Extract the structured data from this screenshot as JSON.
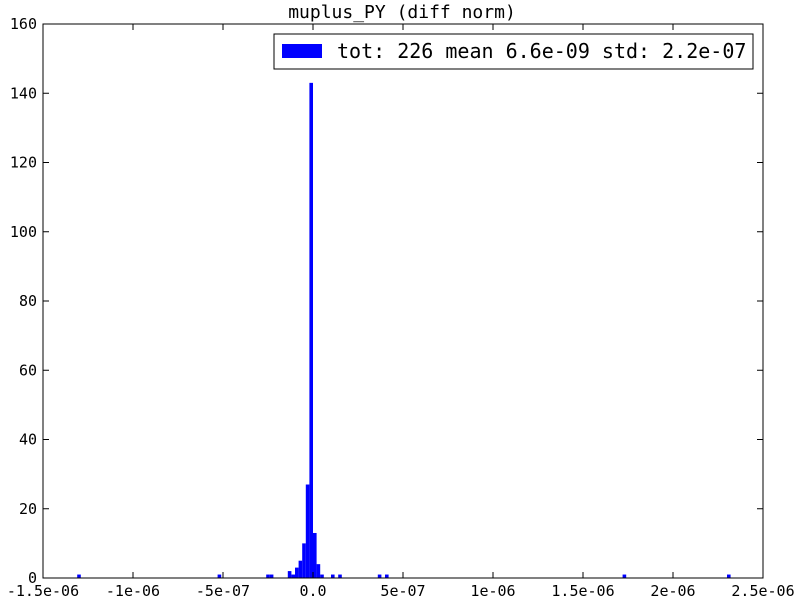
{
  "chart_data": {
    "type": "bar",
    "title": "muplus_PY (diff norm)",
    "xlabel": "",
    "ylabel": "",
    "xlim": [
      -1.5e-06,
      2.5e-06
    ],
    "ylim": [
      0,
      160
    ],
    "x_ticks": [
      {
        "value": -1.5e-06,
        "label": "-1.5e-06"
      },
      {
        "value": -1e-06,
        "label": "-1e-06"
      },
      {
        "value": -5e-07,
        "label": "-5e-07"
      },
      {
        "value": 0.0,
        "label": "0.0"
      },
      {
        "value": 5e-07,
        "label": "5e-07"
      },
      {
        "value": 1e-06,
        "label": "1e-06"
      },
      {
        "value": 1.5e-06,
        "label": "1.5e-06"
      },
      {
        "value": 2e-06,
        "label": "2e-06"
      },
      {
        "value": 2.5e-06,
        "label": "2.5e-06"
      }
    ],
    "y_ticks": [
      {
        "value": 0,
        "label": "0"
      },
      {
        "value": 20,
        "label": "20"
      },
      {
        "value": 40,
        "label": "40"
      },
      {
        "value": 60,
        "label": "60"
      },
      {
        "value": 80,
        "label": "80"
      },
      {
        "value": 100,
        "label": "100"
      },
      {
        "value": 120,
        "label": "120"
      },
      {
        "value": 140,
        "label": "140"
      },
      {
        "value": 160,
        "label": "160"
      }
    ],
    "bin_width": 2e-08,
    "bar_color": "#0000ff",
    "grid": false,
    "legend": {
      "placement": "top-right",
      "label": "tot: 226 mean 6.6e-09 std: 2.2e-07"
    },
    "bins": [
      {
        "x": -1.3e-06,
        "count": 1
      },
      {
        "x": -5.2e-07,
        "count": 1
      },
      {
        "x": -2.5e-07,
        "count": 1
      },
      {
        "x": -2.3e-07,
        "count": 1
      },
      {
        "x": -1.3e-07,
        "count": 2
      },
      {
        "x": -1.1e-07,
        "count": 1
      },
      {
        "x": -9e-08,
        "count": 3
      },
      {
        "x": -7e-08,
        "count": 5
      },
      {
        "x": -5e-08,
        "count": 10
      },
      {
        "x": -3e-08,
        "count": 27
      },
      {
        "x": -1e-08,
        "count": 143
      },
      {
        "x": 1e-08,
        "count": 13
      },
      {
        "x": 3e-08,
        "count": 4
      },
      {
        "x": 5e-08,
        "count": 1
      },
      {
        "x": 1.1e-07,
        "count": 1
      },
      {
        "x": 1.5e-07,
        "count": 1
      },
      {
        "x": 3.7e-07,
        "count": 1
      },
      {
        "x": 4.1e-07,
        "count": 1
      },
      {
        "x": 1.73e-06,
        "count": 1
      },
      {
        "x": 2.31e-06,
        "count": 1
      }
    ]
  }
}
